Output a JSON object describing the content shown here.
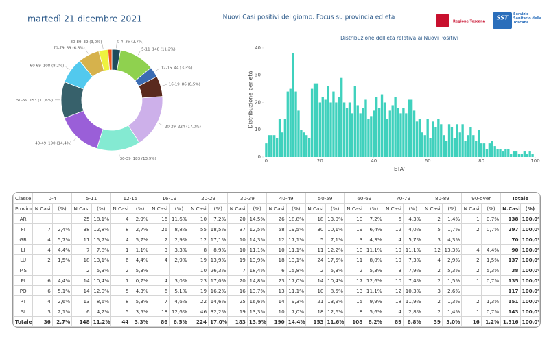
{
  "header": {
    "date": "martedì 21 dicembre 2021",
    "title": "Nuovi Casi positivi del giorno. Focus su provincia ed età",
    "logo_left": "Regione Toscana",
    "logo_right_mark": "SST",
    "logo_right": "Servizio Sanitario della Toscana"
  },
  "chart_data": [
    {
      "type": "pie",
      "categories": [
        "0-4",
        "5-11",
        "12-15",
        "16-19",
        "20-29",
        "30-39",
        "40-49",
        "50-59",
        "60-69",
        "70-79",
        "80-89",
        null
      ],
      "values": [
        36,
        148,
        44,
        86,
        224,
        183,
        190,
        153,
        108,
        89,
        39,
        16
      ],
      "value_labels": [
        "36 (2,7%)",
        "148 (11,2%)",
        "44 (3,3%)",
        "86 (6,5%)",
        "224 (17,0%)",
        "183 (13,9%)",
        "190 (14,4%)",
        "153 (11,6%)",
        "108 (8,2%)",
        "89 (6,8%)",
        "39 (3,0%)",
        null
      ],
      "colors": [
        "#1f4b5c",
        "#8fd14f",
        "#3b6cb3",
        "#5a2a1e",
        "#cdb0ea",
        "#84ead2",
        "#9a5fd8",
        "#37616b",
        "#52c9ee",
        "#d6b24c",
        "#eef23e",
        "#f0561c"
      ]
    },
    {
      "type": "bar",
      "title": "Distribuzione dell'età relativa ai Nuovi Positivi",
      "x_label": "ETA'",
      "y_label": "Distribuzione per età",
      "x": [
        0,
        1,
        2,
        3,
        4,
        5,
        6,
        7,
        8,
        9,
        10,
        11,
        12,
        13,
        14,
        15,
        16,
        17,
        18,
        19,
        20,
        21,
        22,
        23,
        24,
        25,
        26,
        27,
        28,
        29,
        30,
        31,
        32,
        33,
        34,
        35,
        36,
        37,
        38,
        39,
        40,
        41,
        42,
        43,
        44,
        45,
        46,
        47,
        48,
        49,
        50,
        51,
        52,
        53,
        54,
        55,
        56,
        57,
        58,
        59,
        60,
        61,
        62,
        63,
        64,
        65,
        66,
        67,
        68,
        69,
        70,
        71,
        72,
        73,
        74,
        75,
        76,
        77,
        78,
        79,
        80,
        81,
        82,
        83,
        84,
        85,
        86,
        87,
        88,
        89,
        90,
        91,
        92,
        93,
        94,
        95,
        96,
        97,
        98,
        99
      ],
      "values": [
        5,
        8,
        8,
        8,
        7,
        14,
        9,
        14,
        24,
        25,
        38,
        24,
        17,
        10,
        9,
        8,
        7,
        25,
        27,
        27,
        20,
        22,
        21,
        26,
        20,
        24,
        20,
        22,
        29,
        20,
        18,
        20,
        16,
        26,
        19,
        16,
        18,
        21,
        14,
        15,
        17,
        22,
        18,
        23,
        20,
        14,
        17,
        19,
        22,
        18,
        16,
        18,
        16,
        21,
        21,
        17,
        13,
        14,
        9,
        8,
        14,
        7,
        13,
        11,
        14,
        12,
        8,
        6,
        12,
        11,
        7,
        12,
        9,
        12,
        6,
        8,
        11,
        8,
        6,
        10,
        5,
        5,
        3,
        5,
        6,
        4,
        3,
        3,
        2,
        3,
        3,
        1,
        2,
        2,
        1,
        1,
        2,
        1,
        2,
        1
      ],
      "color": "#3fd1bd",
      "xlim": [
        -1,
        100
      ],
      "xticks": [
        0,
        20,
        40,
        60,
        80,
        100
      ],
      "ylim": [
        0,
        42
      ],
      "yticks": [
        0,
        10,
        20,
        30,
        40
      ],
      "grid": false
    }
  ],
  "table": {
    "header_top": "Classe",
    "groups": [
      "0-4",
      "5-11",
      "12-15",
      "16-19",
      "20-29",
      "30-39",
      "40-49",
      "50-59",
      "60-69",
      "70-79",
      "80-89",
      "90-over"
    ],
    "total_label": "Totale",
    "subheader": [
      "Provincia",
      "N.Casi",
      "(%)"
    ],
    "rows": [
      [
        "AR",
        null,
        null,
        "25",
        "18,1%",
        "4",
        "2,9%",
        "16",
        "11,6%",
        "10",
        "7,2%",
        "20",
        "14,5%",
        "26",
        "18,8%",
        "18",
        "13,0%",
        "10",
        "7,2%",
        "6",
        "4,3%",
        "2",
        "1,4%",
        "1",
        "0,7%",
        "138",
        "100,0%"
      ],
      [
        "FI",
        "7",
        "2,4%",
        "38",
        "12,8%",
        "8",
        "2,7%",
        "26",
        "8,8%",
        "55",
        "18,5%",
        "37",
        "12,5%",
        "58",
        "19,5%",
        "30",
        "10,1%",
        "19",
        "6,4%",
        "12",
        "4,0%",
        "5",
        "1,7%",
        "2",
        "0,7%",
        "297",
        "100,0%"
      ],
      [
        "GR",
        "4",
        "5,7%",
        "11",
        "15,7%",
        "4",
        "5,7%",
        "2",
        "2,9%",
        "12",
        "17,1%",
        "10",
        "14,3%",
        "12",
        "17,1%",
        "5",
        "7,1%",
        "3",
        "4,3%",
        "4",
        "5,7%",
        "3",
        "4,3%",
        null,
        null,
        "70",
        "100,0%"
      ],
      [
        "LI",
        "4",
        "4,4%",
        "7",
        "7,8%",
        "1",
        "1,1%",
        "3",
        "3,3%",
        "8",
        "8,9%",
        "10",
        "11,1%",
        "10",
        "11,1%",
        "11",
        "12,2%",
        "10",
        "11,1%",
        "10",
        "11,1%",
        "12",
        "13,3%",
        "4",
        "4,4%",
        "90",
        "100,0%"
      ],
      [
        "LU",
        "2",
        "1,5%",
        "18",
        "13,1%",
        "6",
        "4,4%",
        "4",
        "2,9%",
        "19",
        "13,9%",
        "19",
        "13,9%",
        "18",
        "13,1%",
        "24",
        "17,5%",
        "11",
        "8,0%",
        "10",
        "7,3%",
        "4",
        "2,9%",
        "2",
        "1,5%",
        "137",
        "100,0%"
      ],
      [
        "MS",
        null,
        null,
        "2",
        "5,3%",
        "2",
        "5,3%",
        null,
        null,
        "10",
        "26,3%",
        "7",
        "18,4%",
        "6",
        "15,8%",
        "2",
        "5,3%",
        "2",
        "5,3%",
        "3",
        "7,9%",
        "2",
        "5,3%",
        "2",
        "5,3%",
        "38",
        "100,0%"
      ],
      [
        "PI",
        "6",
        "4,4%",
        "14",
        "10,4%",
        "1",
        "0,7%",
        "4",
        "3,0%",
        "23",
        "17,0%",
        "20",
        "14,8%",
        "23",
        "17,0%",
        "14",
        "10,4%",
        "17",
        "12,6%",
        "10",
        "7,4%",
        "2",
        "1,5%",
        "1",
        "0,7%",
        "135",
        "100,0%"
      ],
      [
        "PO",
        "6",
        "5,1%",
        "14",
        "12,0%",
        "5",
        "4,3%",
        "6",
        "5,1%",
        "19",
        "16,2%",
        "16",
        "13,7%",
        "13",
        "11,1%",
        "10",
        "8,5%",
        "13",
        "11,1%",
        "12",
        "10,3%",
        "3",
        "2,6%",
        null,
        null,
        "117",
        "100,0%"
      ],
      [
        "PT",
        "4",
        "2,6%",
        "13",
        "8,6%",
        "8",
        "5,3%",
        "7",
        "4,6%",
        "22",
        "14,6%",
        "25",
        "16,6%",
        "14",
        "9,3%",
        "21",
        "13,9%",
        "15",
        "9,9%",
        "18",
        "11,9%",
        "2",
        "1,3%",
        "2",
        "1,3%",
        "151",
        "100,0%"
      ],
      [
        "SI",
        "3",
        "2,1%",
        "6",
        "4,2%",
        "5",
        "3,5%",
        "18",
        "12,6%",
        "46",
        "32,2%",
        "19",
        "13,3%",
        "10",
        "7,0%",
        "18",
        "12,6%",
        "8",
        "5,6%",
        "4",
        "2,8%",
        "2",
        "1,4%",
        "1",
        "0,7%",
        "143",
        "100,0%"
      ],
      [
        "Totale",
        "36",
        "2,7%",
        "148",
        "11,2%",
        "44",
        "3,3%",
        "86",
        "6,5%",
        "224",
        "17,0%",
        "183",
        "13,9%",
        "190",
        "14,4%",
        "153",
        "11,6%",
        "108",
        "8,2%",
        "89",
        "6,8%",
        "39",
        "3,0%",
        "16",
        "1,2%",
        "1.316",
        "100,0%"
      ]
    ]
  }
}
